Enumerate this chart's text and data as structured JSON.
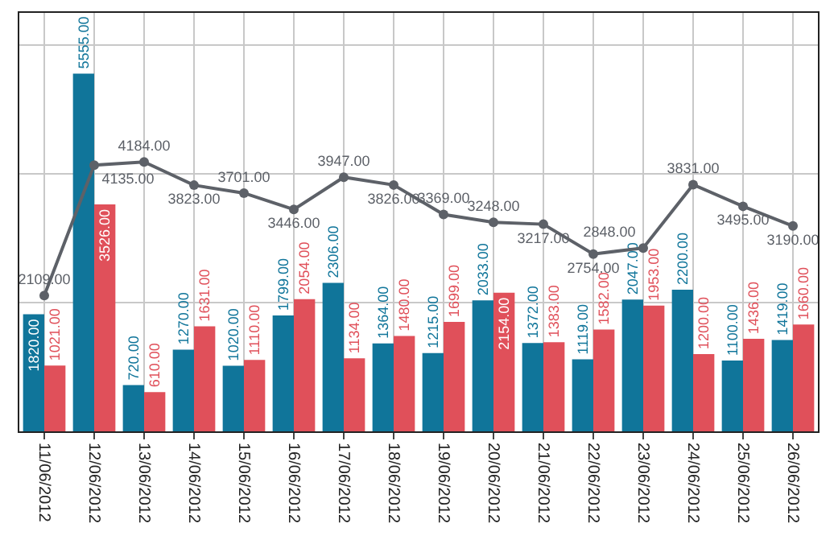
{
  "chart_data": {
    "type": "bar",
    "categories": [
      "11/06/2012",
      "12/06/2012",
      "13/06/2012",
      "14/06/2012",
      "15/06/2012",
      "16/06/2012",
      "17/06/2012",
      "18/06/2012",
      "19/06/2012",
      "20/06/2012",
      "21/06/2012",
      "22/06/2012",
      "23/06/2012",
      "24/06/2012",
      "25/06/2012",
      "26/06/2012"
    ],
    "series": [
      {
        "color": "#10759a",
        "values": [
          1820,
          5555,
          720,
          1270,
          1020,
          1799,
          2306,
          1364,
          1215,
          2033,
          1372,
          1119,
          2047,
          2200,
          1100,
          1419
        ],
        "value_labels": [
          "1820.00",
          "5555.00",
          "720.00",
          "1270.00",
          "1020.00",
          "1799.00",
          "2306.00",
          "1364.00",
          "1215.00",
          "2033.00",
          "1372.00",
          "1119.00",
          "2047.00",
          "2200.00",
          "1100.00",
          "1419.00"
        ]
      },
      {
        "color": "#e0505a",
        "values": [
          1021,
          3526,
          610,
          1631,
          1110,
          2054,
          1134,
          1480,
          1699,
          2154,
          1383,
          1582,
          1953,
          1200,
          1436,
          1660
        ],
        "value_labels": [
          "1021.00",
          "3526.00",
          "610.00",
          "1631.00",
          "1110.00",
          "2054.00",
          "1134.00",
          "1480.00",
          "1699.00",
          "2154.00",
          "1383.00",
          "1582.00",
          "1953.00",
          "1200.00",
          "1436.00",
          "1660.00"
        ]
      },
      {
        "type": "line",
        "color": "#5d6168",
        "values": [
          2109,
          4135,
          4184,
          3823,
          3701,
          3446,
          3947,
          3826,
          3369,
          3248,
          3217,
          2754,
          2848,
          3831,
          3495,
          3190
        ],
        "value_labels": [
          "2109.00",
          "4135.00",
          "4184.00",
          "3823.00",
          "3701.00",
          "3446.00",
          "3947.00",
          "3826.00",
          "3369.00",
          "3248.00",
          "3217.00",
          "2754.00",
          "2848.00",
          "3831.00",
          "3495.00",
          "3190.00"
        ]
      }
    ],
    "tick_labels": "x",
    "grid": true,
    "marker": "circle"
  }
}
